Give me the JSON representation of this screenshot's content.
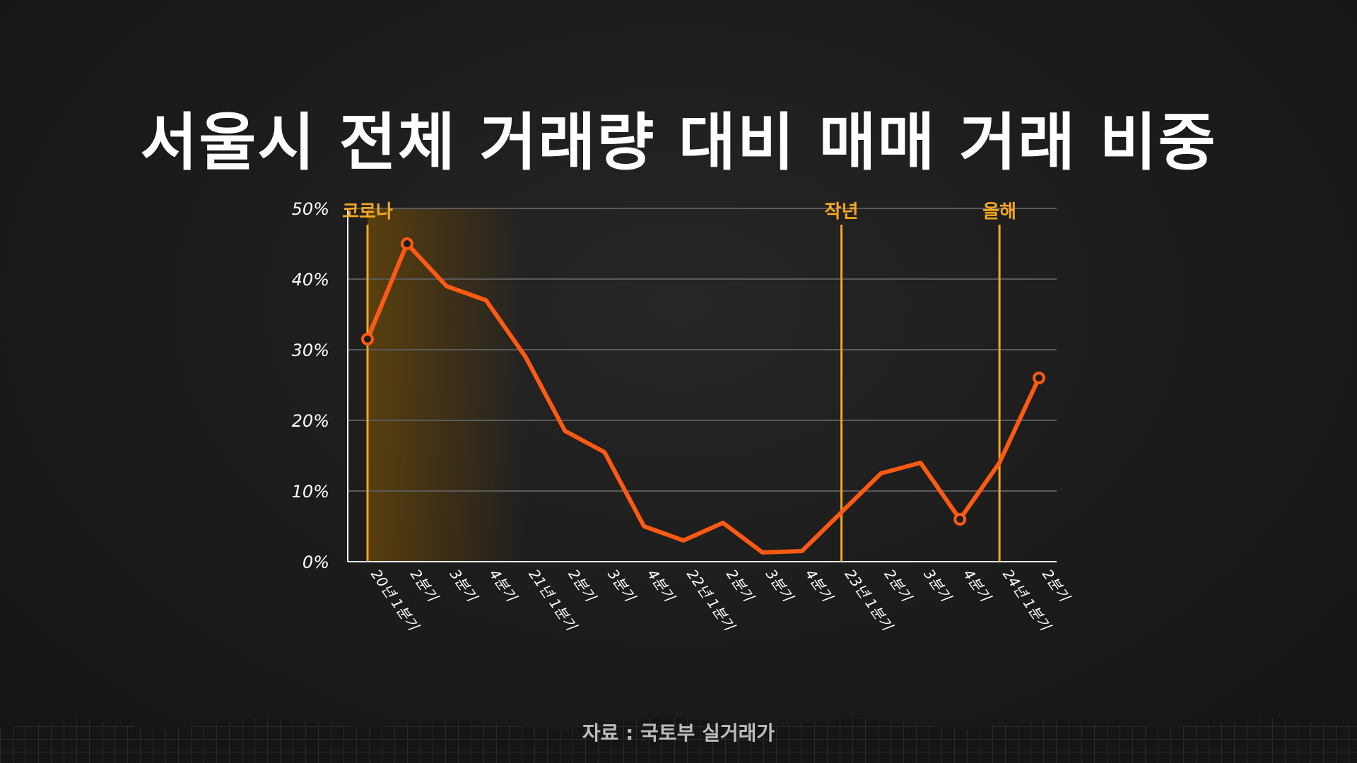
{
  "title": "서울시 전체 거래량 대비 매매 거래 비중",
  "source": "자료 : 국토부 실거래가",
  "colors": {
    "line": "#ff5a14",
    "marker_line": "#f5a623",
    "marker_label": "#f5a623",
    "grid": "#5a5a5a",
    "axis": "#ffffff",
    "shade": "#8a5a00"
  },
  "chart_data": {
    "type": "line",
    "title": "서울시 전체 거래량 대비 매매 거래 비중",
    "xlabel": "",
    "ylabel": "",
    "ylim": [
      0,
      50
    ],
    "grid": true,
    "categories": [
      "20년 1분기",
      "2분기",
      "3분기",
      "4분기",
      "21년 1분기",
      "2분기",
      "3분기",
      "4분기",
      "22년 1분기",
      "2분기",
      "3분기",
      "4분기",
      "23년 1분기",
      "2분기",
      "3분기",
      "4분기",
      "24년 1분기",
      "2분기"
    ],
    "y_ticks": [
      "0%",
      "10%",
      "20%",
      "30%",
      "40%",
      "50%"
    ],
    "series": [
      {
        "values": [
          31.5,
          45,
          39,
          37,
          29,
          18.5,
          15.5,
          5,
          3,
          5.5,
          1.3,
          1.5,
          7,
          12.5,
          14,
          6,
          14,
          26
        ]
      }
    ],
    "highlighted_points": [
      0,
      1,
      15,
      17
    ],
    "annotations": [
      {
        "label": "코로나",
        "category_index": 0
      },
      {
        "label": "작년",
        "category_index": 12
      },
      {
        "label": "올해",
        "category_index": 16
      }
    ],
    "shaded_region": {
      "from_index": 0,
      "to_index": 4
    }
  }
}
